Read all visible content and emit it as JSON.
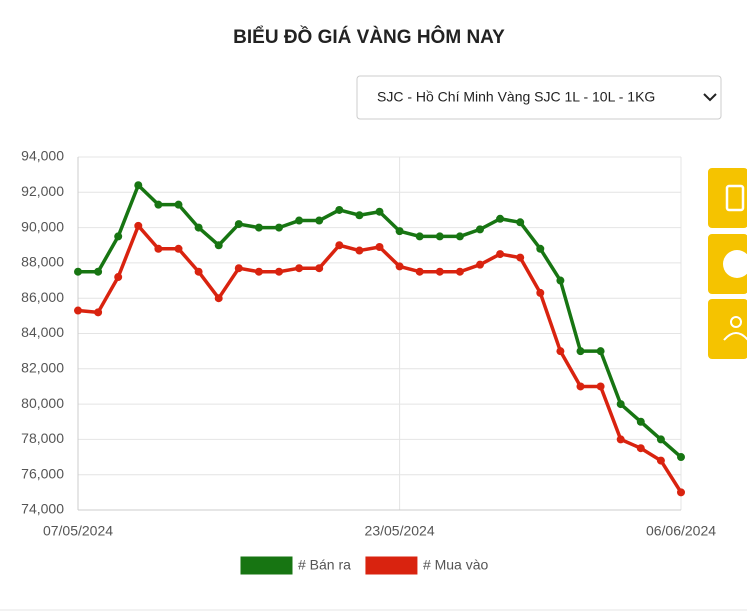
{
  "filter": {
    "selected": "SJC - Hồ Chí Minh Vàng SJC 1L - 10L - 1KG"
  },
  "chart_data": {
    "type": "line",
    "title": "BIỂU ĐỒ GIÁ VÀNG HÔM NAY",
    "categories": [
      "07/05/2024",
      null,
      null,
      null,
      null,
      null,
      null,
      null,
      null,
      null,
      null,
      null,
      null,
      null,
      null,
      null,
      "23/05/2024",
      null,
      null,
      null,
      null,
      null,
      null,
      null,
      null,
      null,
      null,
      null,
      null,
      null,
      "06/06/2024"
    ],
    "series": [
      {
        "name": "# Bán ra",
        "color": "#177512",
        "values": [
          87500,
          87500,
          89500,
          92400,
          91300,
          91300,
          90000,
          89000,
          90200,
          90000,
          90000,
          90400,
          90400,
          91000,
          90700,
          90900,
          89800,
          89500,
          89500,
          89500,
          89900,
          90500,
          90300,
          88800,
          87000,
          83000,
          83000,
          80000,
          79000,
          78000,
          77000
        ]
      },
      {
        "name": "# Mua vào",
        "color": "#d9230f",
        "values": [
          85300,
          85200,
          87200,
          90100,
          88800,
          88800,
          87500,
          86000,
          87700,
          87500,
          87500,
          87700,
          87700,
          89000,
          88700,
          88900,
          87800,
          87500,
          87500,
          87500,
          87900,
          88500,
          88300,
          86300,
          83000,
          81000,
          81000,
          78000,
          77500,
          76800,
          75000
        ]
      }
    ],
    "ylim": [
      74000,
      94000
    ],
    "yticks": [
      {
        "value": 74000,
        "label": "74,000"
      },
      {
        "value": 76000,
        "label": "76,000"
      },
      {
        "value": 78000,
        "label": "78,000"
      },
      {
        "value": 80000,
        "label": "80,000"
      },
      {
        "value": 82000,
        "label": "82,000"
      },
      {
        "value": 84000,
        "label": "84,000"
      },
      {
        "value": 86000,
        "label": "86,000"
      },
      {
        "value": 88000,
        "label": "88,000"
      },
      {
        "value": 90000,
        "label": "90,000"
      },
      {
        "value": 92000,
        "label": "92,000"
      },
      {
        "value": 94000,
        "label": "94,000"
      }
    ],
    "grid": true
  }
}
